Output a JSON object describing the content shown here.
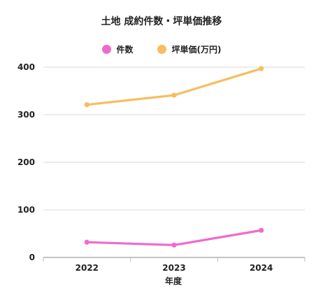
{
  "chart_data": {
    "type": "line",
    "title": "土地 成約件数・坪単価推移",
    "xlabel": "年度",
    "ylabel": "",
    "categories": [
      "2022",
      "2023",
      "2024"
    ],
    "ylim": [
      0,
      400
    ],
    "yticks": [
      "0",
      "100",
      "200",
      "300",
      "400"
    ],
    "grid": true,
    "legend_position": "top",
    "series": [
      {
        "name": "件数",
        "values": [
          32,
          26,
          57
        ],
        "color": "#f06acb"
      },
      {
        "name": "坪単価(万円)",
        "values": [
          321,
          341,
          397
        ],
        "color": "#f7bd5e"
      }
    ]
  }
}
